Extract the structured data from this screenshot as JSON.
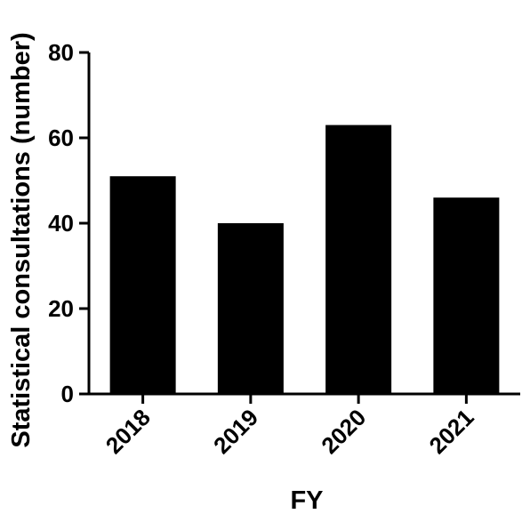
{
  "chart_data": {
    "type": "bar",
    "title": "",
    "xlabel": "FY",
    "ylabel": "Statistical consultations (number)",
    "categories": [
      "2018",
      "2019",
      "2020",
      "2021"
    ],
    "values": [
      51,
      40,
      63,
      46
    ],
    "ylim": [
      0,
      80
    ],
    "yticks": [
      0,
      20,
      40,
      60,
      80
    ],
    "grid": false,
    "legend": "none",
    "bar_color": "#000000",
    "axis_color": "#000000"
  }
}
